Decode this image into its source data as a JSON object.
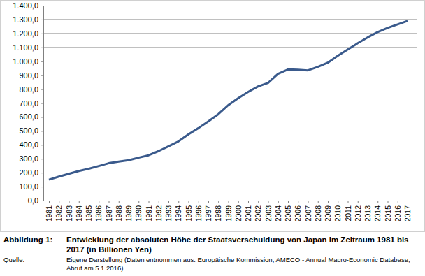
{
  "chart_data": {
    "type": "line",
    "title": "Entwicklung der absoluten Höhe der Staatsverschuldung von Japan im Zeitraum 1981 bis 2017 (in Billionen Yen)",
    "annotations": [
      "Abbildung 1:",
      "Quelle:",
      "Eigene Darstellung (Daten entnommen aus: Europäische Kommission, AMECO - Annual Macro-Economic Database, Abruf am 5.1.2016)"
    ],
    "categories": [
      "1981",
      "1982",
      "1983",
      "1984",
      "1985",
      "1986",
      "1987",
      "1988",
      "1989",
      "1990",
      "1991",
      "1992",
      "1993",
      "1994",
      "1995",
      "1996",
      "1997",
      "1998",
      "1999",
      "2000",
      "2001",
      "2002",
      "2003",
      "2004",
      "2005",
      "2006",
      "2007",
      "2008",
      "2009",
      "2010",
      "2011",
      "2012",
      "2013",
      "2014",
      "2015",
      "2016",
      "2017"
    ],
    "values": [
      150,
      172,
      192,
      212,
      228,
      248,
      268,
      280,
      290,
      308,
      325,
      355,
      390,
      425,
      475,
      520,
      568,
      620,
      685,
      735,
      780,
      820,
      845,
      910,
      942,
      940,
      935,
      960,
      990,
      1040,
      1085,
      1130,
      1172,
      1210,
      1240,
      1265,
      1290
    ],
    "color": "#3a5a8c",
    "ylim": [
      0,
      1400
    ],
    "yticks": [
      {
        "value": 0,
        "label": "0,0"
      },
      {
        "value": 100,
        "label": "100,0"
      },
      {
        "value": 200,
        "label": "200,0"
      },
      {
        "value": 300,
        "label": "300,0"
      },
      {
        "value": 400,
        "label": "400,0"
      },
      {
        "value": 500,
        "label": "500,0"
      },
      {
        "value": 600,
        "label": "600,0"
      },
      {
        "value": 700,
        "label": "700,0"
      },
      {
        "value": 800,
        "label": "800,0"
      },
      {
        "value": 900,
        "label": "900,0"
      },
      {
        "value": 1000,
        "label": "1.000,0"
      },
      {
        "value": 1100,
        "label": "1.100,0"
      },
      {
        "value": 1200,
        "label": "1.200,0"
      },
      {
        "value": 1300,
        "label": "1.300,0"
      },
      {
        "value": 1400,
        "label": "1.400,0"
      }
    ],
    "grid": true
  }
}
